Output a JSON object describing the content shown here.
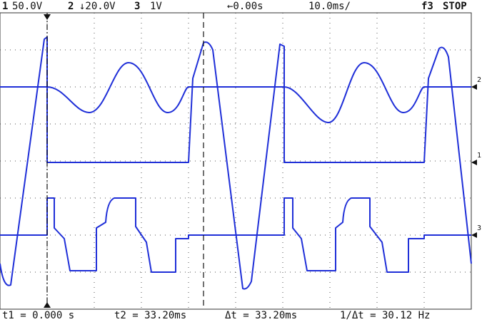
{
  "header": {
    "ch1_num": "1",
    "ch1_scale": "50.0V",
    "ch2_num": "2",
    "ch2_scale": "↓20.0V",
    "ch3_num": "3",
    "ch3_scale": "1V",
    "delay": "←0.00s",
    "timebase": "10.0ms/",
    "trigger": "f3",
    "status": "STOP"
  },
  "footer": {
    "t1": "t1 = 0.000 s",
    "t2": "t2 = 33.20ms",
    "dt": "Δt = 33.20ms",
    "inv_dt": "1/Δt = 30.12 Hz"
  },
  "markers": {
    "ch2": "2",
    "ch1": "1",
    "ch3": "3"
  }
}
